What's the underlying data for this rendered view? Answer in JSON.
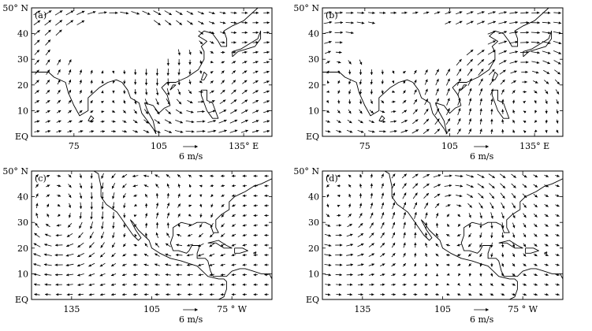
{
  "panels": [
    {
      "id": "a",
      "tag": "(a)",
      "region": "asia",
      "y_ticks": [
        "50° N",
        "40",
        "30",
        "20",
        "10",
        "EQ"
      ],
      "x_ticks": [
        "75",
        "105",
        "135° E"
      ],
      "reference_vector": {
        "label": "6 m/s",
        "speed": 6
      },
      "flow": {
        "vortices": [
          {
            "lat": 38,
            "lon": 88,
            "strength": -5,
            "radius": 18
          },
          {
            "lat": 15,
            "lon": 118,
            "strength": 4,
            "radius": 12
          }
        ],
        "background_u": 3,
        "background_v": 0.2,
        "blank_region": "tibetan-plateau"
      }
    },
    {
      "id": "b",
      "tag": "(b)",
      "region": "asia",
      "y_ticks": [
        "50° N",
        "40",
        "30",
        "20",
        "10",
        "EQ"
      ],
      "x_ticks": [
        "75",
        "105",
        "135° E"
      ],
      "reference_vector": {
        "label": "6 m/s",
        "speed": 6
      },
      "flow": {
        "vortices": [
          {
            "lat": 30,
            "lon": 65,
            "strength": -4,
            "radius": 12
          },
          {
            "lat": 22,
            "lon": 130,
            "strength": -5,
            "radius": 16
          },
          {
            "lat": 10,
            "lon": 85,
            "strength": 3,
            "radius": 14
          }
        ],
        "background_u": 2.5,
        "background_v": 0.5,
        "blank_region": "tibetan-plateau"
      }
    },
    {
      "id": "c",
      "tag": "(c)",
      "region": "america",
      "y_ticks": [
        "50° N",
        "40",
        "30",
        "20",
        "10",
        "EQ"
      ],
      "x_ticks": [
        "135",
        "105",
        "75 ° W"
      ],
      "reference_vector": {
        "label": "6 m/s",
        "speed": 6
      },
      "flow": {
        "vortices": [
          {
            "lat": 30,
            "lon": -140,
            "strength": -5,
            "radius": 14
          },
          {
            "lat": 38,
            "lon": -110,
            "strength": 3,
            "radius": 12
          },
          {
            "lat": 28,
            "lon": -95,
            "strength": -4,
            "radius": 10
          }
        ],
        "background_u": -1.5,
        "background_v": 0,
        "blank_region": "none"
      }
    },
    {
      "id": "d",
      "tag": "(d)",
      "region": "america",
      "y_ticks": [
        "50° N",
        "40",
        "30",
        "20",
        "10",
        "EQ"
      ],
      "x_ticks": [
        "135",
        "105",
        "75 ° W"
      ],
      "reference_vector": {
        "label": "6 m/s",
        "speed": 6
      },
      "flow": {
        "vortices": [
          {
            "lat": 32,
            "lon": -145,
            "strength": 4,
            "radius": 14
          },
          {
            "lat": 35,
            "lon": -100,
            "strength": -5,
            "radius": 14
          }
        ],
        "background_u": 1.5,
        "background_v": -0.3,
        "blank_region": "none"
      }
    }
  ]
}
